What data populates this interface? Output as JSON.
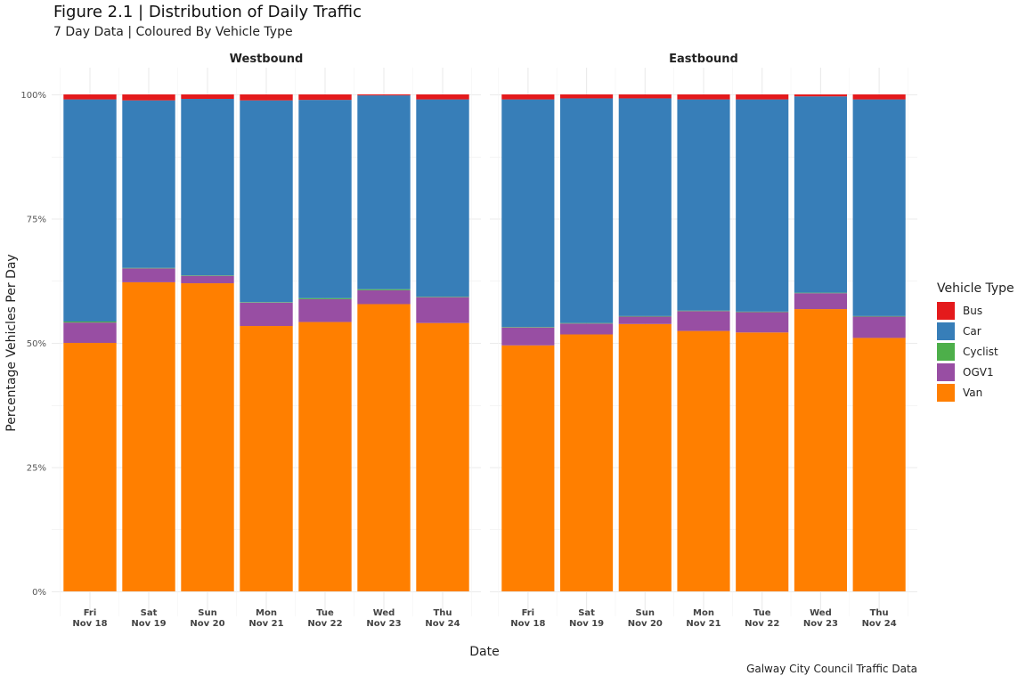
{
  "title": "Figure 2.1 | Distribution of Daily Traffic",
  "subtitle": "7 Day Data | Coloured By Vehicle Type",
  "caption": "Galway City Council Traffic Data",
  "colors": {
    "Bus": "#e41a1c",
    "Car": "#377eb8",
    "Cyclist": "#4daf4a",
    "OGV1": "#984ea3",
    "Van": "#ff7f00"
  },
  "chart_data": {
    "type": "bar",
    "stacked": true,
    "xlabel": "Date",
    "ylabel": "Percentage Vehicles Per Day",
    "ylim": [
      0,
      1
    ],
    "yticks": [
      "0%",
      "25%",
      "50%",
      "75%",
      "100%"
    ],
    "grid": true,
    "legend": {
      "title": "Vehicle Type",
      "position": "right",
      "entries": [
        "Bus",
        "Car",
        "Cyclist",
        "OGV1",
        "Van"
      ]
    },
    "categories": [
      {
        "day": "Fri",
        "date": "Nov 18"
      },
      {
        "day": "Sat",
        "date": "Nov 19"
      },
      {
        "day": "Sun",
        "date": "Nov 20"
      },
      {
        "day": "Mon",
        "date": "Nov 21"
      },
      {
        "day": "Tue",
        "date": "Nov 22"
      },
      {
        "day": "Wed",
        "date": "Nov 23"
      },
      {
        "day": "Thu",
        "date": "Nov 24"
      }
    ],
    "stack_order": [
      "Van",
      "OGV1",
      "Cyclist",
      "Car",
      "Bus"
    ],
    "facets": [
      {
        "name": "Westbound",
        "series": [
          {
            "name": "Van",
            "values": [
              0.5,
              0.622,
              0.62,
              0.534,
              0.542,
              0.578,
              0.54
            ]
          },
          {
            "name": "OGV1",
            "values": [
              0.041,
              0.028,
              0.015,
              0.047,
              0.046,
              0.028,
              0.052
            ]
          },
          {
            "name": "Cyclist",
            "values": [
              0.002,
              0.001,
              0.001,
              0.001,
              0.002,
              0.002,
              0.001
            ]
          },
          {
            "name": "Car",
            "values": [
              0.447,
              0.337,
              0.355,
              0.406,
              0.399,
              0.39,
              0.397
            ]
          },
          {
            "name": "Bus",
            "values": [
              0.01,
              0.012,
              0.009,
              0.012,
              0.011,
              0.002,
              0.01
            ]
          }
        ]
      },
      {
        "name": "Eastbound",
        "series": [
          {
            "name": "Van",
            "values": [
              0.495,
              0.517,
              0.538,
              0.524,
              0.521,
              0.568,
              0.51
            ]
          },
          {
            "name": "OGV1",
            "values": [
              0.036,
              0.022,
              0.015,
              0.04,
              0.041,
              0.032,
              0.043
            ]
          },
          {
            "name": "Cyclist",
            "values": [
              0.001,
              0.001,
              0.001,
              0.001,
              0.001,
              0.001,
              0.001
            ]
          },
          {
            "name": "Car",
            "values": [
              0.458,
              0.452,
              0.438,
              0.425,
              0.427,
              0.395,
              0.436
            ]
          },
          {
            "name": "Bus",
            "values": [
              0.01,
              0.008,
              0.008,
              0.01,
              0.01,
              0.004,
              0.01
            ]
          }
        ]
      }
    ]
  }
}
